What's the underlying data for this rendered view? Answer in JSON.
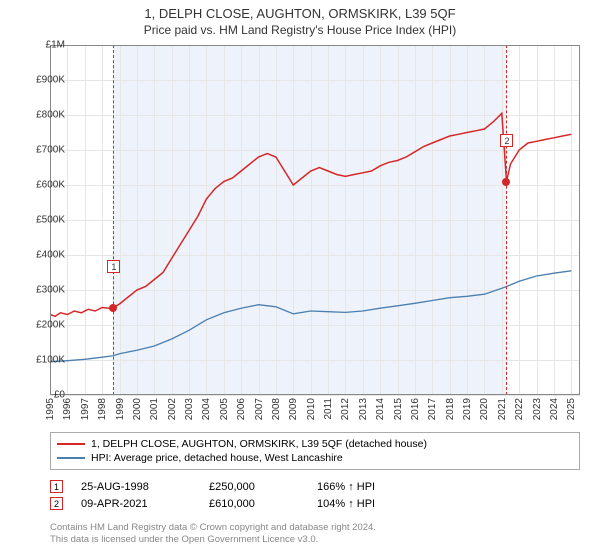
{
  "title": "1, DELPH CLOSE, AUGHTON, ORMSKIRK, L39 5QF",
  "subtitle": "Price paid vs. HM Land Registry's House Price Index (HPI)",
  "chart": {
    "type": "line",
    "background_color": "#ffffff",
    "grid_color": "#e6e6e6",
    "border_color": "#888888",
    "shaded_band_color": "#eef3fb",
    "shaded_band": {
      "x_start": 1998.65,
      "x_end": 2021.27
    },
    "xlim": [
      1995,
      2025.5
    ],
    "ylim": [
      0,
      1000000
    ],
    "ytick_step": 100000,
    "yticks": [
      {
        "v": 0,
        "label": "£0"
      },
      {
        "v": 100000,
        "label": "£100K"
      },
      {
        "v": 200000,
        "label": "£200K"
      },
      {
        "v": 300000,
        "label": "£300K"
      },
      {
        "v": 400000,
        "label": "£400K"
      },
      {
        "v": 500000,
        "label": "£500K"
      },
      {
        "v": 600000,
        "label": "£600K"
      },
      {
        "v": 700000,
        "label": "£700K"
      },
      {
        "v": 800000,
        "label": "£800K"
      },
      {
        "v": 900000,
        "label": "£900K"
      },
      {
        "v": 1000000,
        "label": "£1M"
      }
    ],
    "xticks": [
      1995,
      1996,
      1997,
      1998,
      1999,
      2000,
      2001,
      2002,
      2003,
      2004,
      2005,
      2006,
      2007,
      2008,
      2009,
      2010,
      2011,
      2012,
      2013,
      2014,
      2015,
      2016,
      2017,
      2018,
      2019,
      2020,
      2021,
      2022,
      2023,
      2024,
      2025
    ],
    "label_fontsize": 10,
    "series": [
      {
        "name": "1, DELPH CLOSE, AUGHTON, ORMSKIRK, L39 5QF (detached house)",
        "color": "#d62728",
        "line_width": 1.5,
        "data": [
          [
            1995.0,
            230000
          ],
          [
            1995.3,
            225000
          ],
          [
            1995.6,
            235000
          ],
          [
            1996.0,
            230000
          ],
          [
            1996.4,
            240000
          ],
          [
            1996.8,
            235000
          ],
          [
            1997.2,
            245000
          ],
          [
            1997.6,
            240000
          ],
          [
            1998.0,
            250000
          ],
          [
            1998.4,
            248000
          ],
          [
            1998.65,
            250000
          ],
          [
            1999.0,
            260000
          ],
          [
            1999.5,
            280000
          ],
          [
            2000.0,
            300000
          ],
          [
            2000.5,
            310000
          ],
          [
            2001.0,
            330000
          ],
          [
            2001.5,
            350000
          ],
          [
            2002.0,
            390000
          ],
          [
            2002.5,
            430000
          ],
          [
            2003.0,
            470000
          ],
          [
            2003.5,
            510000
          ],
          [
            2004.0,
            560000
          ],
          [
            2004.5,
            590000
          ],
          [
            2005.0,
            610000
          ],
          [
            2005.5,
            620000
          ],
          [
            2006.0,
            640000
          ],
          [
            2006.5,
            660000
          ],
          [
            2007.0,
            680000
          ],
          [
            2007.5,
            690000
          ],
          [
            2008.0,
            680000
          ],
          [
            2008.5,
            640000
          ],
          [
            2009.0,
            600000
          ],
          [
            2009.5,
            620000
          ],
          [
            2010.0,
            640000
          ],
          [
            2010.5,
            650000
          ],
          [
            2011.0,
            640000
          ],
          [
            2011.5,
            630000
          ],
          [
            2012.0,
            625000
          ],
          [
            2012.5,
            630000
          ],
          [
            2013.0,
            635000
          ],
          [
            2013.5,
            640000
          ],
          [
            2014.0,
            655000
          ],
          [
            2014.5,
            665000
          ],
          [
            2015.0,
            670000
          ],
          [
            2015.5,
            680000
          ],
          [
            2016.0,
            695000
          ],
          [
            2016.5,
            710000
          ],
          [
            2017.0,
            720000
          ],
          [
            2017.5,
            730000
          ],
          [
            2018.0,
            740000
          ],
          [
            2018.5,
            745000
          ],
          [
            2019.0,
            750000
          ],
          [
            2019.5,
            755000
          ],
          [
            2020.0,
            760000
          ],
          [
            2020.5,
            780000
          ],
          [
            2021.0,
            805000
          ],
          [
            2021.27,
            610000
          ],
          [
            2021.5,
            660000
          ],
          [
            2022.0,
            700000
          ],
          [
            2022.5,
            720000
          ],
          [
            2023.0,
            725000
          ],
          [
            2023.5,
            730000
          ],
          [
            2024.0,
            735000
          ],
          [
            2024.5,
            740000
          ],
          [
            2025.0,
            745000
          ]
        ]
      },
      {
        "name": "HPI: Average price, detached house, West Lancashire",
        "color": "#4a7fb0",
        "line_width": 1.3,
        "data": [
          [
            1995.0,
            95000
          ],
          [
            1996.0,
            98000
          ],
          [
            1997.0,
            102000
          ],
          [
            1998.0,
            108000
          ],
          [
            1998.65,
            112000
          ],
          [
            1999.0,
            118000
          ],
          [
            2000.0,
            128000
          ],
          [
            2001.0,
            140000
          ],
          [
            2002.0,
            160000
          ],
          [
            2003.0,
            185000
          ],
          [
            2004.0,
            215000
          ],
          [
            2005.0,
            235000
          ],
          [
            2006.0,
            248000
          ],
          [
            2007.0,
            258000
          ],
          [
            2008.0,
            252000
          ],
          [
            2009.0,
            232000
          ],
          [
            2010.0,
            240000
          ],
          [
            2011.0,
            238000
          ],
          [
            2012.0,
            236000
          ],
          [
            2013.0,
            240000
          ],
          [
            2014.0,
            248000
          ],
          [
            2015.0,
            255000
          ],
          [
            2016.0,
            262000
          ],
          [
            2017.0,
            270000
          ],
          [
            2018.0,
            278000
          ],
          [
            2019.0,
            282000
          ],
          [
            2020.0,
            288000
          ],
          [
            2021.0,
            305000
          ],
          [
            2021.27,
            310000
          ],
          [
            2022.0,
            325000
          ],
          [
            2023.0,
            340000
          ],
          [
            2024.0,
            348000
          ],
          [
            2025.0,
            355000
          ]
        ]
      }
    ],
    "transaction_markers": [
      {
        "n": "1",
        "x": 1998.65,
        "y": 250000,
        "color": "#d62728",
        "box_y_offset": -48
      },
      {
        "n": "2",
        "x": 2021.27,
        "y": 610000,
        "color": "#d62728",
        "box_y_offset": -48
      }
    ]
  },
  "legend": {
    "items": [
      {
        "color": "#d62728",
        "label": "1, DELPH CLOSE, AUGHTON, ORMSKIRK, L39 5QF (detached house)"
      },
      {
        "color": "#4a7fb0",
        "label": "HPI: Average price, detached house, West Lancashire"
      }
    ]
  },
  "transactions_table": {
    "rows": [
      {
        "n": "1",
        "color": "#d62728",
        "date": "25-AUG-1998",
        "price": "£250,000",
        "pct": "166% ↑ HPI"
      },
      {
        "n": "2",
        "color": "#d62728",
        "date": "09-APR-2021",
        "price": "£610,000",
        "pct": "104% ↑ HPI"
      }
    ]
  },
  "footer_line1": "Contains HM Land Registry data © Crown copyright and database right 2024.",
  "footer_line2": "This data is licensed under the Open Government Licence v3.0."
}
